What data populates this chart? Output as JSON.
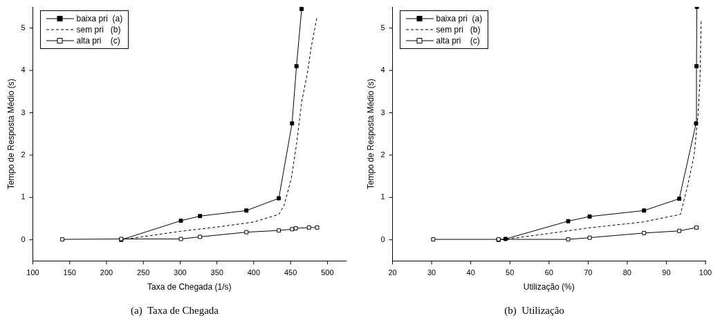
{
  "chart_data": [
    {
      "type": "line",
      "title": "(a)  Taxa de Chegada",
      "xlabel": "Taxa de Chegada (1/s)",
      "ylabel": "Tempo de Resposta Médio (s)",
      "xlim": [
        100,
        525
      ],
      "xticks": [
        100,
        150,
        200,
        250,
        300,
        350,
        400,
        450,
        500
      ],
      "ylim": [
        -0.5,
        5.5
      ],
      "yticks": [
        0,
        1,
        2,
        3,
        4,
        5
      ],
      "grid": false,
      "legend": "top left",
      "series": [
        {
          "name": "baixa pri  (a)",
          "color": "#000000",
          "marker": "square",
          "line_style": "solid",
          "x": [
            220,
            301,
            327,
            390,
            434,
            452,
            458,
            465
          ],
          "values": [
            0,
            0.45,
            0.56,
            0.69,
            0.98,
            2.75,
            4.1,
            5.45
          ]
        },
        {
          "name": "sem pri   (b)",
          "color": "#000000",
          "marker": "none",
          "line_style": "dashed",
          "x": [
            220,
            300,
            350,
            400,
            434,
            441,
            451,
            458,
            465,
            473,
            478,
            486
          ],
          "values": [
            0,
            0.2,
            0.3,
            0.42,
            0.6,
            0.8,
            1.45,
            2.25,
            3.25,
            3.95,
            4.55,
            5.27
          ]
        },
        {
          "name": "alta pri    (c)",
          "color": "#000000",
          "marker": "square",
          "line_style": "solid",
          "x": [
            140,
            220,
            301,
            327,
            390,
            434,
            452,
            457,
            475,
            486
          ],
          "values": [
            0.01,
            0.02,
            0.02,
            0.07,
            0.18,
            0.22,
            0.25,
            0.27,
            0.29,
            0.29
          ]
        }
      ]
    },
    {
      "type": "line",
      "title": "(b)  Utilização",
      "xlabel": "Utilização (%)",
      "ylabel": "Tempo de Resposta Médio (s)",
      "xlim": [
        20,
        100
      ],
      "xticks": [
        20,
        30,
        40,
        50,
        60,
        70,
        80,
        90,
        100
      ],
      "ylim": [
        -0.5,
        5.5
      ],
      "yticks": [
        0,
        1,
        2,
        3,
        4,
        5
      ],
      "grid": false,
      "legend": "top left",
      "series": [
        {
          "name": "baixa pri  (a)",
          "color": "#000000",
          "marker": "square",
          "line_style": "solid",
          "x": [
            47.1,
            48.9,
            64.9,
            70.4,
            84.3,
            93.3,
            97.6,
            97.7,
            97.8
          ],
          "values": [
            0,
            0.02,
            0.44,
            0.55,
            0.69,
            0.97,
            2.75,
            4.1,
            5.5
          ]
        },
        {
          "name": "sem pri   (b)",
          "color": "#000000",
          "marker": "none",
          "line_style": "dashed",
          "x": [
            48,
            60,
            70,
            84,
            93.6,
            95.5,
            97.1,
            98.1,
            98.6,
            98.9
          ],
          "values": [
            0,
            0.15,
            0.28,
            0.42,
            0.6,
            1.3,
            2,
            2.95,
            3.8,
            5.2
          ]
        },
        {
          "name": "alta pri    (c)",
          "color": "#000000",
          "marker": "square",
          "line_style": "solid",
          "x": [
            30.4,
            47.1,
            64.9,
            70.4,
            84.3,
            93.3,
            97.7
          ],
          "values": [
            0.01,
            0.01,
            0.01,
            0.05,
            0.16,
            0.21,
            0.29
          ]
        }
      ]
    }
  ]
}
